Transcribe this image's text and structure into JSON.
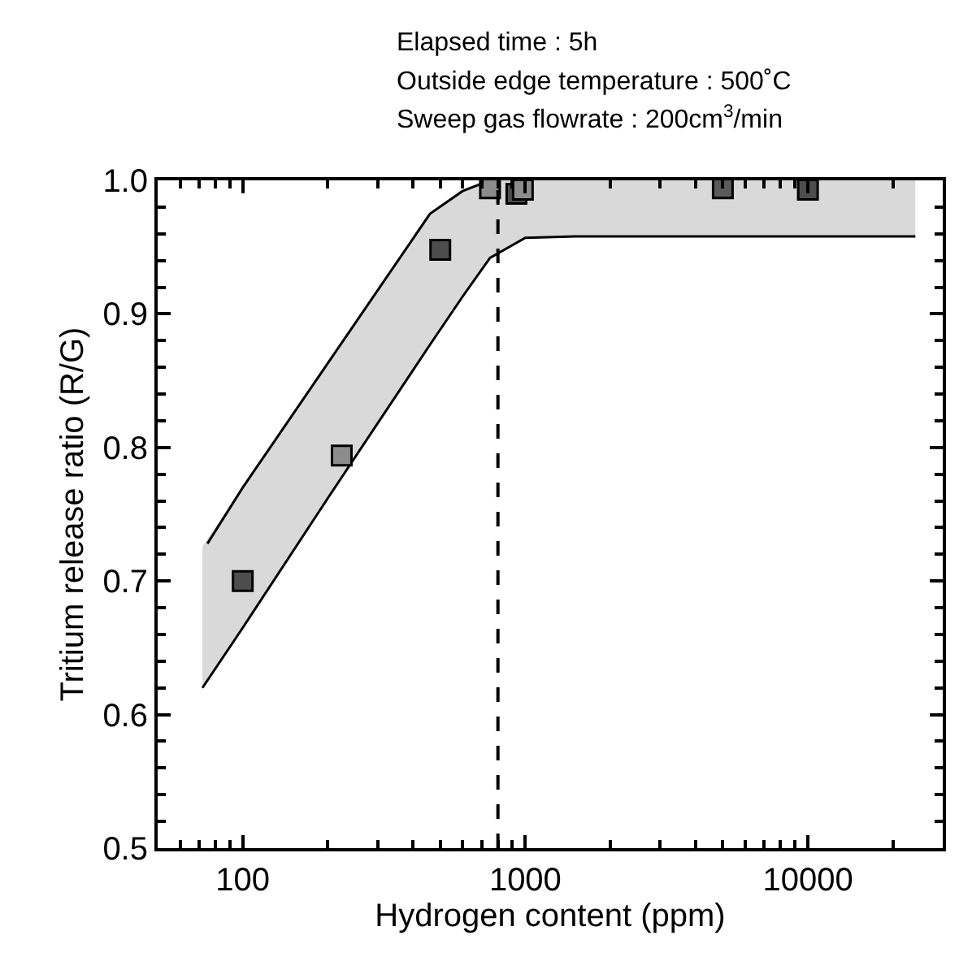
{
  "chart_data": {
    "type": "scatter",
    "annotations": [
      "Elapsed time : 5h",
      "Outside edge temperature : 500˚C",
      "Sweep gas flowrate : 200cm$^{3}$/min"
    ],
    "xlabel": "Hydrogen content (ppm)",
    "ylabel": "Tritium release ratio (R/G)",
    "log": "x",
    "xlim": [
      50,
      30000
    ],
    "xticks": [
      100,
      1000,
      10000
    ],
    "ylim": [
      0.5,
      1.0
    ],
    "yticks": [
      0.5,
      0.6,
      0.7,
      0.8,
      0.9,
      {
        "value": 1.0,
        "label": "1.0"
      }
    ],
    "ref_lines": [
      {
        "axis": "x",
        "value": 800,
        "line_style": "dashed",
        "color": "#000000"
      }
    ],
    "series": [
      {
        "type": "area",
        "color": "#d9d9d9",
        "x": [
          72,
          100,
          200,
          460,
          600,
          750,
          1000,
          1500,
          24000
        ],
        "values": [
          null,
          null,
          null,
          null,
          null,
          null,
          null,
          null,
          null
        ],
        "lower": [
          0.62,
          0.665,
          0.762,
          0.877,
          0.913,
          0.942,
          0.957,
          0.958,
          0.958
        ],
        "upper": [
          0.726,
          0.77,
          0.863,
          0.975,
          0.992,
          1.0,
          1.0,
          1.0,
          1.0
        ]
      },
      {
        "type": "line",
        "color": "#000000",
        "x": [
          72,
          100,
          200,
          460,
          600,
          750,
          1000,
          1500,
          24000
        ],
        "values": [
          0.62,
          0.665,
          0.762,
          0.877,
          0.913,
          0.942,
          0.957,
          0.958,
          0.958
        ]
      },
      {
        "type": "line",
        "color": "#000000",
        "x": [
          75,
          100,
          200,
          460,
          600,
          750
        ],
        "values": [
          0.728,
          0.77,
          0.863,
          0.975,
          0.992,
          1.0
        ]
      },
      {
        "marker": "square",
        "color": "#4d4d4d",
        "colors": [
          "#4d4d4d",
          "#8c8c8c",
          "#4d4d4d",
          "#8c8c8c",
          "#4d4d4d",
          "#8c8c8c",
          "#5a5a5a",
          "#4d4d4d"
        ],
        "x": [
          100,
          224,
          500,
          750,
          930,
          980,
          5000,
          10000
        ],
        "values": [
          0.7,
          0.794,
          0.948,
          0.994,
          0.99,
          0.993,
          0.994,
          0.993
        ]
      }
    ]
  }
}
